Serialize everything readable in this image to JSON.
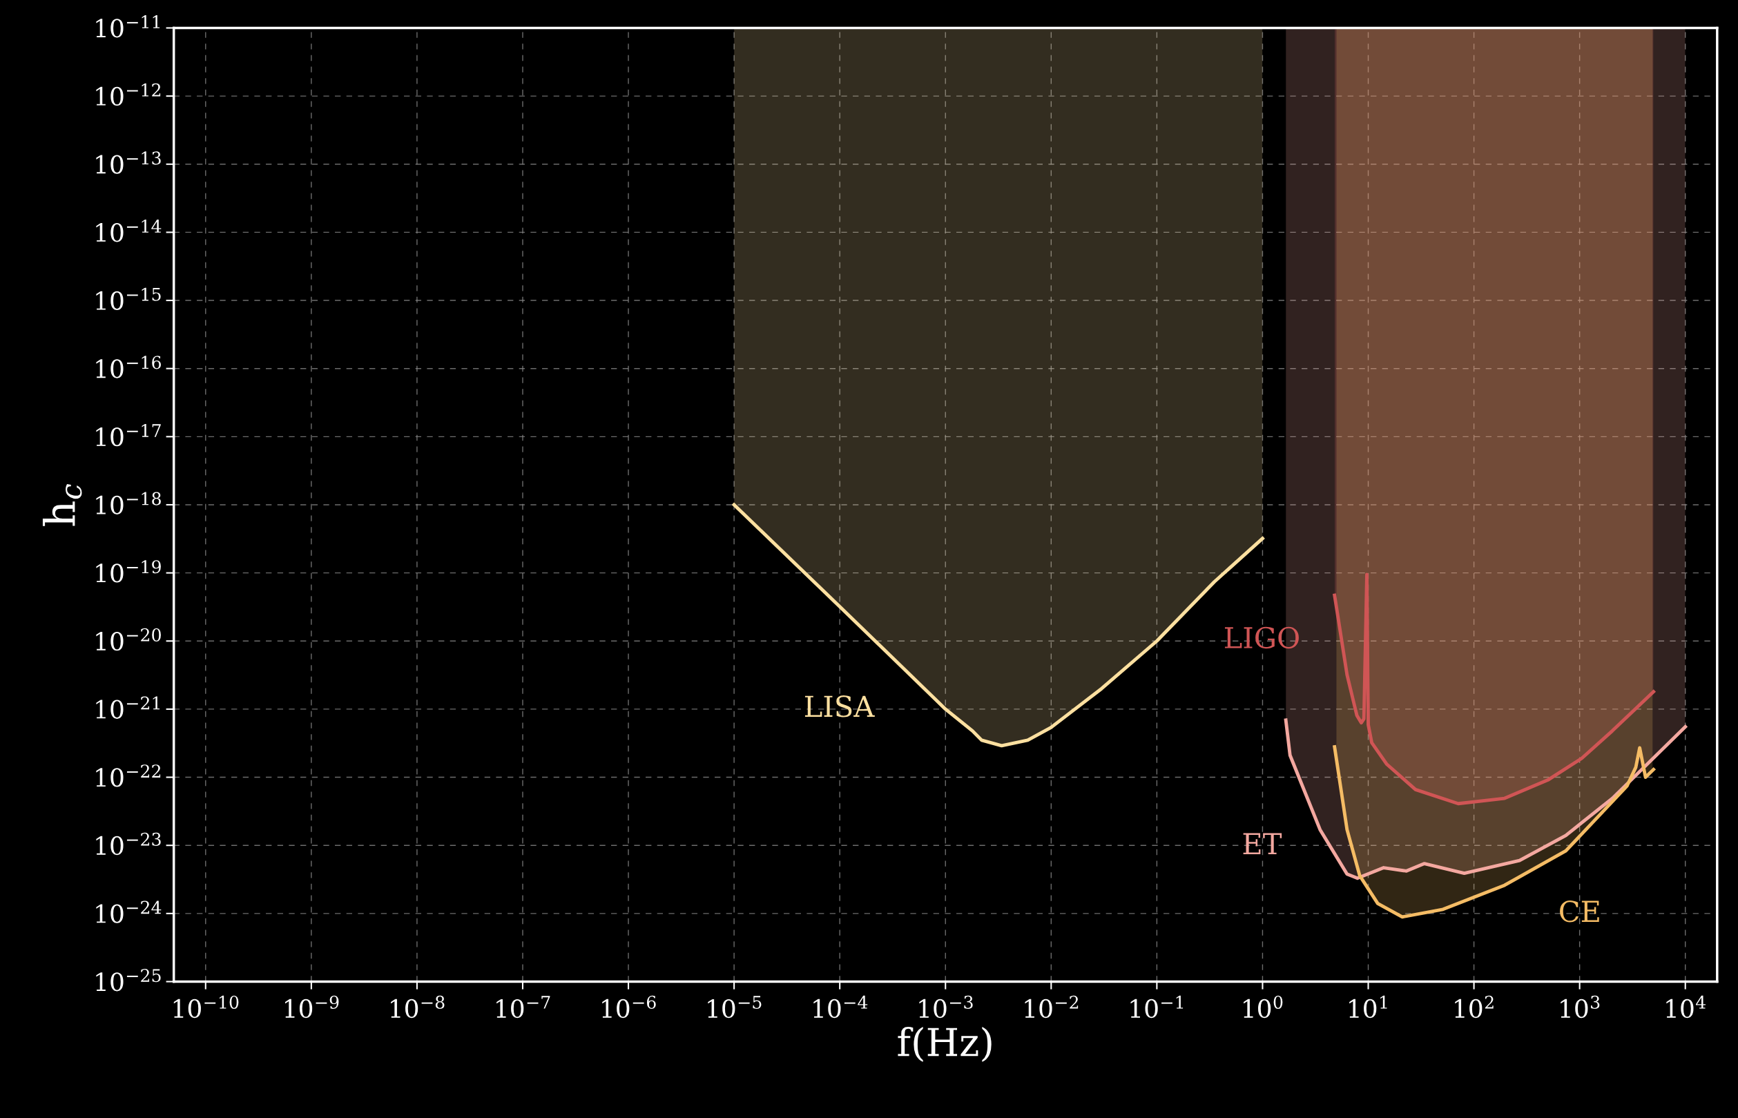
{
  "chart_data": {
    "type": "line",
    "xlabel": "f(Hz)",
    "ylabel": "h$_{c}$",
    "log": "xy",
    "grid": true,
    "legend": false,
    "xlim": [
      5e-11,
      20000.0
    ],
    "ylim": [
      1e-25,
      1e-11
    ],
    "xticks": [
      {
        "value": 1e-10,
        "label": "10$^{−10}$"
      },
      {
        "value": 1e-09,
        "label": "10$^{−9}$"
      },
      {
        "value": 1e-08,
        "label": "10$^{−8}$"
      },
      {
        "value": 1e-07,
        "label": "10$^{−7}$"
      },
      {
        "value": 1e-06,
        "label": "10$^{−6}$"
      },
      {
        "value": 1e-05,
        "label": "10$^{−5}$"
      },
      {
        "value": 0.0001,
        "label": "10$^{−4}$"
      },
      {
        "value": 0.001,
        "label": "10$^{−3}$"
      },
      {
        "value": 0.01,
        "label": "10$^{−2}$"
      },
      {
        "value": 0.1,
        "label": "10$^{−1}$"
      },
      {
        "value": 1,
        "label": "10$^{0}$"
      },
      {
        "value": 10,
        "label": "10$^{1}$"
      },
      {
        "value": 100,
        "label": "10$^{2}$"
      },
      {
        "value": 1000,
        "label": "10$^{3}$"
      },
      {
        "value": 10000,
        "label": "10$^{4}$"
      }
    ],
    "yticks": [
      {
        "value": 1e-25,
        "label": "10$^{−25}$"
      },
      {
        "value": 1e-24,
        "label": "10$^{−24}$"
      },
      {
        "value": 1e-23,
        "label": "10$^{−23}$"
      },
      {
        "value": 1e-22,
        "label": "10$^{−22}$"
      },
      {
        "value": 1e-21,
        "label": "10$^{−21}$"
      },
      {
        "value": 1e-20,
        "label": "10$^{−20}$"
      },
      {
        "value": 1e-19,
        "label": "10$^{−19}$"
      },
      {
        "value": 1e-18,
        "label": "10$^{−18}$"
      },
      {
        "value": 1e-17,
        "label": "10$^{−17}$"
      },
      {
        "value": 1e-16,
        "label": "10$^{−16}$"
      },
      {
        "value": 1e-15,
        "label": "10$^{−15}$"
      },
      {
        "value": 1e-14,
        "label": "10$^{−14}$"
      },
      {
        "value": 1e-13,
        "label": "10$^{−13}$"
      },
      {
        "value": 1e-12,
        "label": "10$^{−12}$"
      },
      {
        "value": 1e-11,
        "label": "10$^{−11}$"
      }
    ],
    "bands": [
      {
        "axis": "x",
        "from": 1e-05,
        "to": 1,
        "color": "#fde0a0"
      },
      {
        "axis": "x",
        "from": 4.8,
        "to": 5000,
        "color": "#d05555"
      },
      {
        "axis": "x",
        "from": 1.66,
        "to": 10000,
        "color": "#f4a8a0"
      },
      {
        "axis": "x",
        "from": 5.0,
        "to": 4900,
        "color": "#f5bc65"
      }
    ],
    "series": [
      {
        "name": "LISA",
        "color": "#fde0a0",
        "x": [
          1e-05,
          0.0001,
          0.001,
          0.0018,
          0.0022,
          0.0034,
          0.006,
          0.01,
          0.03,
          0.1,
          0.35,
          1
        ],
        "values": [
          1e-18,
          3.2e-20,
          1e-21,
          4.8e-22,
          3.5e-22,
          2.9e-22,
          3.5e-22,
          5.4e-22,
          2e-21,
          1e-20,
          7.4e-20,
          3.2e-19
        ]
      },
      {
        "name": "LIGO",
        "color": "#d05555",
        "x": [
          4.8,
          6.3,
          7.8,
          8.6,
          9.1,
          9.7,
          10,
          10.8,
          15,
          28,
          71,
          195,
          500,
          1050,
          2040,
          5000
        ],
        "values": [
          4.7e-20,
          3.2e-21,
          8.1e-22,
          6.3e-22,
          7.2e-22,
          9.5e-20,
          5.9e-22,
          3.2e-22,
          1.55e-22,
          6.6e-23,
          4.1e-23,
          4.9e-23,
          9.1e-23,
          1.9e-22,
          4.8e-22,
          1.8e-21
        ]
      },
      {
        "name": "ET",
        "color": "#f4a8a0",
        "x": [
          1.66,
          1.82,
          3.5,
          6.3,
          7.9,
          14,
          23,
          34,
          81,
          270,
          740,
          2040,
          10000
        ],
        "values": [
          6.9e-22,
          2.1e-22,
          1.7e-23,
          3.8e-24,
          3.3e-24,
          4.7e-24,
          4.2e-24,
          5.4e-24,
          3.9e-24,
          6e-24,
          1.4e-23,
          4.9e-23,
          5.5e-22
        ]
      },
      {
        "name": "CE",
        "color": "#f5bc65",
        "x": [
          4.8,
          6.3,
          8.3,
          12.3,
          21,
          51,
          195,
          740,
          2800,
          3400,
          3700,
          4200,
          5000
        ],
        "values": [
          2.8e-22,
          1.7e-23,
          3.6e-24,
          1.4e-24,
          8.9e-25,
          1.15e-24,
          2.6e-24,
          8.3e-24,
          7.4e-23,
          1.4e-22,
          2.7e-22,
          1e-22,
          1.3e-22
        ]
      }
    ]
  }
}
